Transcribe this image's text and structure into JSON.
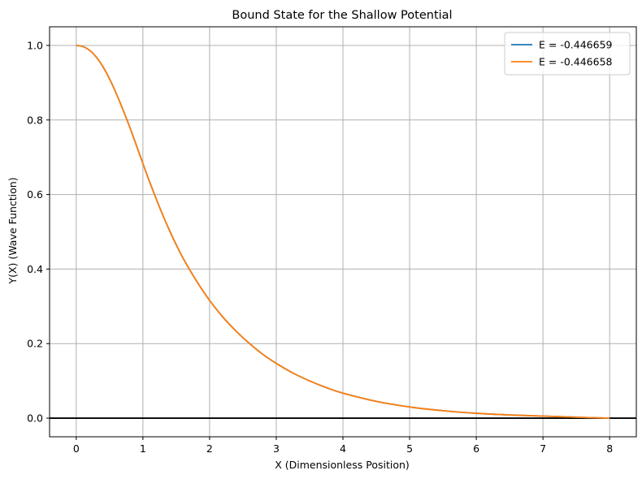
{
  "chart_data": {
    "type": "line",
    "title": "Bound State for the Shallow Potential",
    "xlabel": "X (Dimensionless Position)",
    "ylabel": "Y(X) (Wave Function)",
    "xlim": [
      -0.4,
      8.4
    ],
    "ylim": [
      -0.05,
      1.05
    ],
    "xticks": [
      0,
      1,
      2,
      3,
      4,
      5,
      6,
      7,
      8
    ],
    "yticks": [
      0.0,
      0.2,
      0.4,
      0.6,
      0.8,
      1.0
    ],
    "xtick_labels": [
      "0",
      "1",
      "2",
      "3",
      "4",
      "5",
      "6",
      "7",
      "8"
    ],
    "ytick_labels": [
      "0.0",
      "0.2",
      "0.4",
      "0.6",
      "0.8",
      "1.0"
    ],
    "grid": true,
    "legend_position": "upper right",
    "reference_line": {
      "y": 0,
      "color": "#000000"
    },
    "series": [
      {
        "name": "E = -0.446659",
        "color": "#1f77b4",
        "x": [
          0,
          0.1,
          0.2,
          0.3,
          0.4,
          0.5,
          0.6,
          0.7,
          0.8,
          0.9,
          1.0,
          1.1,
          1.2,
          1.3,
          1.4,
          1.5,
          1.6,
          1.8,
          2.0,
          2.2,
          2.4,
          2.6,
          2.8,
          3.0,
          3.25,
          3.5,
          3.75,
          4.0,
          4.5,
          5.0,
          5.5,
          6.0,
          6.5,
          7.0,
          7.5,
          8.0
        ],
        "y": [
          1.0,
          0.997,
          0.987,
          0.969,
          0.943,
          0.91,
          0.871,
          0.828,
          0.782,
          0.733,
          0.683,
          0.634,
          0.588,
          0.544,
          0.503,
          0.465,
          0.43,
          0.369,
          0.316,
          0.271,
          0.233,
          0.2,
          0.171,
          0.147,
          0.121,
          0.1,
          0.082,
          0.067,
          0.045,
          0.03,
          0.02,
          0.013,
          0.0085,
          0.0055,
          0.0025,
          0.0
        ]
      },
      {
        "name": "E = -0.446658",
        "color": "#ff7f0e",
        "x": [
          0,
          0.1,
          0.2,
          0.3,
          0.4,
          0.5,
          0.6,
          0.7,
          0.8,
          0.9,
          1.0,
          1.1,
          1.2,
          1.3,
          1.4,
          1.5,
          1.6,
          1.8,
          2.0,
          2.2,
          2.4,
          2.6,
          2.8,
          3.0,
          3.25,
          3.5,
          3.75,
          4.0,
          4.5,
          5.0,
          5.5,
          6.0,
          6.5,
          7.0,
          7.5,
          8.0
        ],
        "y": [
          1.0,
          0.997,
          0.987,
          0.969,
          0.943,
          0.91,
          0.871,
          0.828,
          0.782,
          0.733,
          0.683,
          0.634,
          0.588,
          0.544,
          0.503,
          0.465,
          0.43,
          0.369,
          0.316,
          0.271,
          0.233,
          0.2,
          0.171,
          0.147,
          0.121,
          0.1,
          0.082,
          0.067,
          0.045,
          0.03,
          0.02,
          0.013,
          0.0085,
          0.0055,
          0.0025,
          0.0
        ]
      }
    ]
  }
}
